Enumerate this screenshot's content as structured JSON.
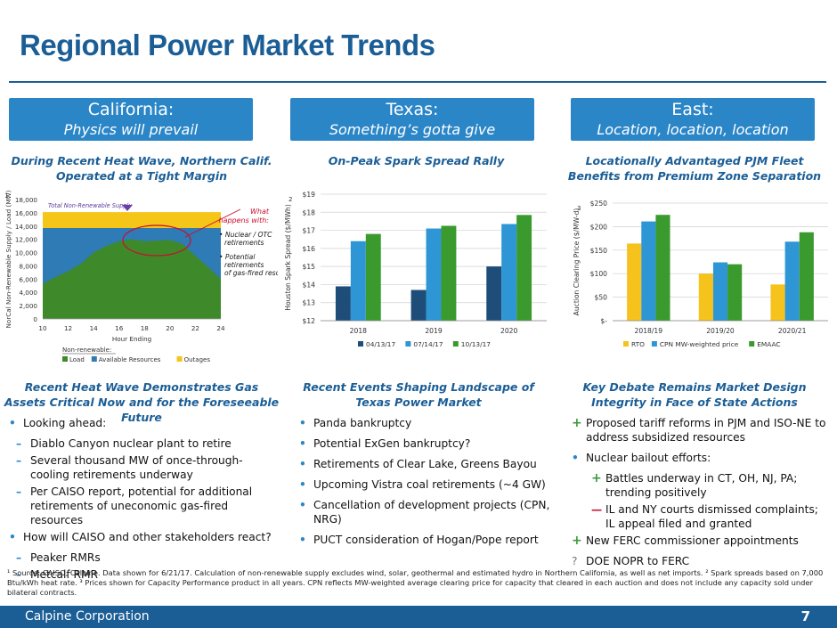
{
  "title": "Regional Power Market Trends",
  "regions": [
    {
      "name": "California:",
      "subtitle": "Physics will prevail"
    },
    {
      "name": "Texas:",
      "subtitle": "Something’s gotta give"
    },
    {
      "name": "East:",
      "subtitle": "Location, location, location"
    }
  ],
  "chart_titles": {
    "ca": "During Recent Heat Wave, Northern Calif. Operated at a Tight Margin",
    "tx": "On-Peak Spark Spread Rally",
    "east": "Locationally Advantaged PJM Fleet Benefits from Premium Zone Separation"
  },
  "section_titles": {
    "ca": "Recent Heat Wave Demonstrates Gas Assets Critical Now and for the Foreseeable Future",
    "tx": "Recent Events Shaping Landscape of Texas Power Market",
    "east": "Key Debate Remains Market Design Integrity in Face of State Actions"
  },
  "ca_annotation": {
    "total_label": "Total Non-Renewable Supply",
    "what_label": "What happens with:",
    "items": [
      "Nuclear / OTC retirements",
      "Potential retirements of gas-fired resources"
    ],
    "nonrenewable_label": "Non-renewable:"
  },
  "ca_bullets": [
    {
      "level": 0,
      "marker": "•",
      "text": "Looking ahead:"
    },
    {
      "level": 1,
      "marker": "–",
      "text": "Diablo Canyon nuclear plant to retire"
    },
    {
      "level": 1,
      "marker": "–",
      "text": "Several thousand MW of once-through-cooling retirements underway"
    },
    {
      "level": 1,
      "marker": "–",
      "text": "Per CAISO report, potential for additional retirements of uneconomic gas-fired resources"
    },
    {
      "level": 0,
      "marker": "•",
      "text": "How will CAISO and other stakeholders react?"
    },
    {
      "level": 1,
      "marker": "–",
      "text": "Peaker RMRs"
    },
    {
      "level": 1,
      "marker": "–",
      "text": "Metcalf RMR"
    }
  ],
  "tx_bullets": [
    {
      "level": 0,
      "marker": "•",
      "text": "Panda bankruptcy"
    },
    {
      "level": 0,
      "marker": "•",
      "text": "Potential ExGen bankruptcy?"
    },
    {
      "level": 0,
      "marker": "•",
      "text": "Retirements of Clear Lake, Greens Bayou"
    },
    {
      "level": 0,
      "marker": "•",
      "text": "Upcoming Vistra coal retirements (~4 GW)"
    },
    {
      "level": 0,
      "marker": "•",
      "text": "Cancellation of development projects (CPN, NRG)"
    },
    {
      "level": 0,
      "marker": "•",
      "text": "PUCT consideration of Hogan/Pope report"
    }
  ],
  "east_bullets": [
    {
      "level": 0,
      "marker": "+",
      "kind": "plus",
      "text": "Proposed tariff reforms in PJM and ISO-NE to address subsidized resources"
    },
    {
      "level": 0,
      "marker": "•",
      "kind": "dot",
      "text": "Nuclear bailout efforts:"
    },
    {
      "level": 2,
      "marker": "+",
      "kind": "plus",
      "text": "Battles underway in CT, OH, NJ, PA; trending positively"
    },
    {
      "level": 2,
      "marker": "—",
      "kind": "minus",
      "text": "IL and NY courts dismissed complaints; IL appeal filed and granted"
    },
    {
      "level": 0,
      "marker": "+",
      "kind": "plus",
      "text": "New FERC commissioner appointments"
    },
    {
      "level": 0,
      "marker": "?",
      "kind": "q",
      "text": "DOE NOPR to FERC"
    }
  ],
  "footnote": "¹ Source: CAISO, Calpine. Data shown for 6/21/17. Calculation of non-renewable supply excludes wind, solar, geothermal and estimated hydro in Northern California, as well as net imports. ² Spark spreads based on 7,000 Btu/kWh heat rate. ³ Prices shown for Capacity Performance product in all years. CPN reflects MW-weighted average clearing price for capacity that cleared in each auction and does not include any capacity sold under bilateral contracts.",
  "footer": {
    "company": "Calpine Corporation",
    "page": "7"
  },
  "colors": {
    "brand": "#1b5e96",
    "box": "#2b86c8",
    "load": "#3e8a2a",
    "available": "#2e7bb5",
    "outages": "#f5c518",
    "navy": "#1e4d7a",
    "mid": "#2e96d4",
    "green": "#3a9a2e",
    "gold": "#f6c21c"
  },
  "chart_data": [
    {
      "type": "area",
      "title": "",
      "xlabel": "Hour Ending",
      "ylabel": "NorCal Non-Renewable Supply / Load (MW)",
      "ylabel_sup": "1",
      "x": [
        10,
        11,
        12,
        13,
        14,
        15,
        16,
        17,
        18,
        19,
        20,
        21,
        22,
        23,
        24
      ],
      "x_ticks": [
        "10",
        "12",
        "14",
        "16",
        "18",
        "20",
        "22",
        "24"
      ],
      "y_ticks": [
        "0",
        "2,000",
        "4,000",
        "6,000",
        "8,000",
        "10,000",
        "12,000",
        "14,000",
        "16,000",
        "18,000"
      ],
      "ylim": [
        0,
        18000
      ],
      "series": [
        {
          "name": "Load",
          "values": [
            5300,
            6300,
            7200,
            8300,
            10000,
            11000,
            11700,
            12000,
            11700,
            11800,
            11900,
            11300,
            9500,
            7800,
            6000
          ]
        },
        {
          "name": "Available Resources",
          "values": [
            13700,
            13700,
            13700,
            13700,
            13700,
            13700,
            13700,
            13700,
            13700,
            13700,
            13700,
            13700,
            13700,
            13700,
            13700
          ]
        },
        {
          "name": "Outages",
          "values": [
            16100,
            16100,
            16100,
            16100,
            16100,
            16100,
            16100,
            16100,
            16100,
            16100,
            16100,
            16100,
            16100,
            16100,
            16100
          ]
        }
      ],
      "legend": "bottom"
    },
    {
      "type": "bar",
      "title": "On-Peak Spark Spread Rally",
      "xlabel": "",
      "ylabel": "Houston Spark Spread ($/MWh)",
      "ylabel_sup": "2",
      "categories": [
        "2018",
        "2019",
        "2020"
      ],
      "y_ticks": [
        "$12",
        "$13",
        "$14",
        "$15",
        "$16",
        "$17",
        "$18",
        "$19"
      ],
      "ylim": [
        12,
        19
      ],
      "series": [
        {
          "name": "04/13/17",
          "values": [
            13.9,
            13.7,
            15.0
          ]
        },
        {
          "name": "07/14/17",
          "values": [
            16.4,
            17.1,
            17.35
          ]
        },
        {
          "name": "10/13/17",
          "values": [
            16.8,
            17.25,
            17.85
          ]
        }
      ],
      "legend": "bottom"
    },
    {
      "type": "bar",
      "title": "",
      "xlabel": "",
      "ylabel": "Auction Clearing Price ($/MW-d)",
      "ylabel_sup": "3",
      "categories": [
        "2018/19",
        "2019/20",
        "2020/21"
      ],
      "y_ticks": [
        "$-",
        "$50",
        "$100",
        "$150",
        "$200",
        "$250"
      ],
      "ylim": [
        0,
        250
      ],
      "series": [
        {
          "name": "RTO",
          "values": [
            164,
            100,
            77
          ]
        },
        {
          "name": "CPN MW-weighted price",
          "values": [
            211,
            124,
            168
          ]
        },
        {
          "name": "EMAAC",
          "values": [
            225,
            120,
            188
          ]
        }
      ],
      "legend": "bottom"
    }
  ]
}
